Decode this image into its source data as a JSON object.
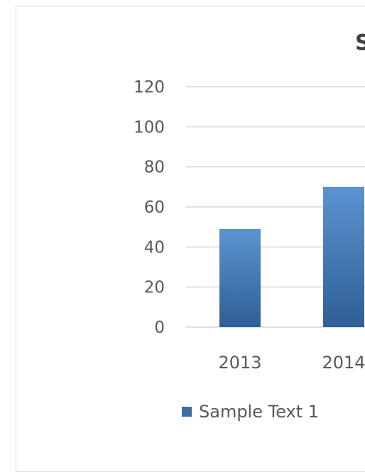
{
  "chart_data": {
    "type": "bar",
    "title_visible": "S",
    "categories": [
      "2013",
      "2014"
    ],
    "category_labels_visible": [
      "2013",
      "2014"
    ],
    "series": [
      {
        "name": "Sample Text 1",
        "values": [
          49,
          70
        ],
        "color": "#3a6fa8"
      }
    ],
    "ylim": [
      0,
      120
    ],
    "yticks": [
      "0",
      "20",
      "40",
      "60",
      "80",
      "100",
      "120"
    ],
    "ytick_values": [
      0,
      20,
      40,
      60,
      80,
      100,
      120
    ],
    "grid": true,
    "legend_position": "bottom",
    "xlabel": "",
    "ylabel": ""
  },
  "colors": {
    "bar_top": "#5b93d1",
    "bar_bottom": "#2e5f95",
    "grid": "#d9d9d9",
    "text": "#595959",
    "panel_border": "#d6d6d6"
  }
}
